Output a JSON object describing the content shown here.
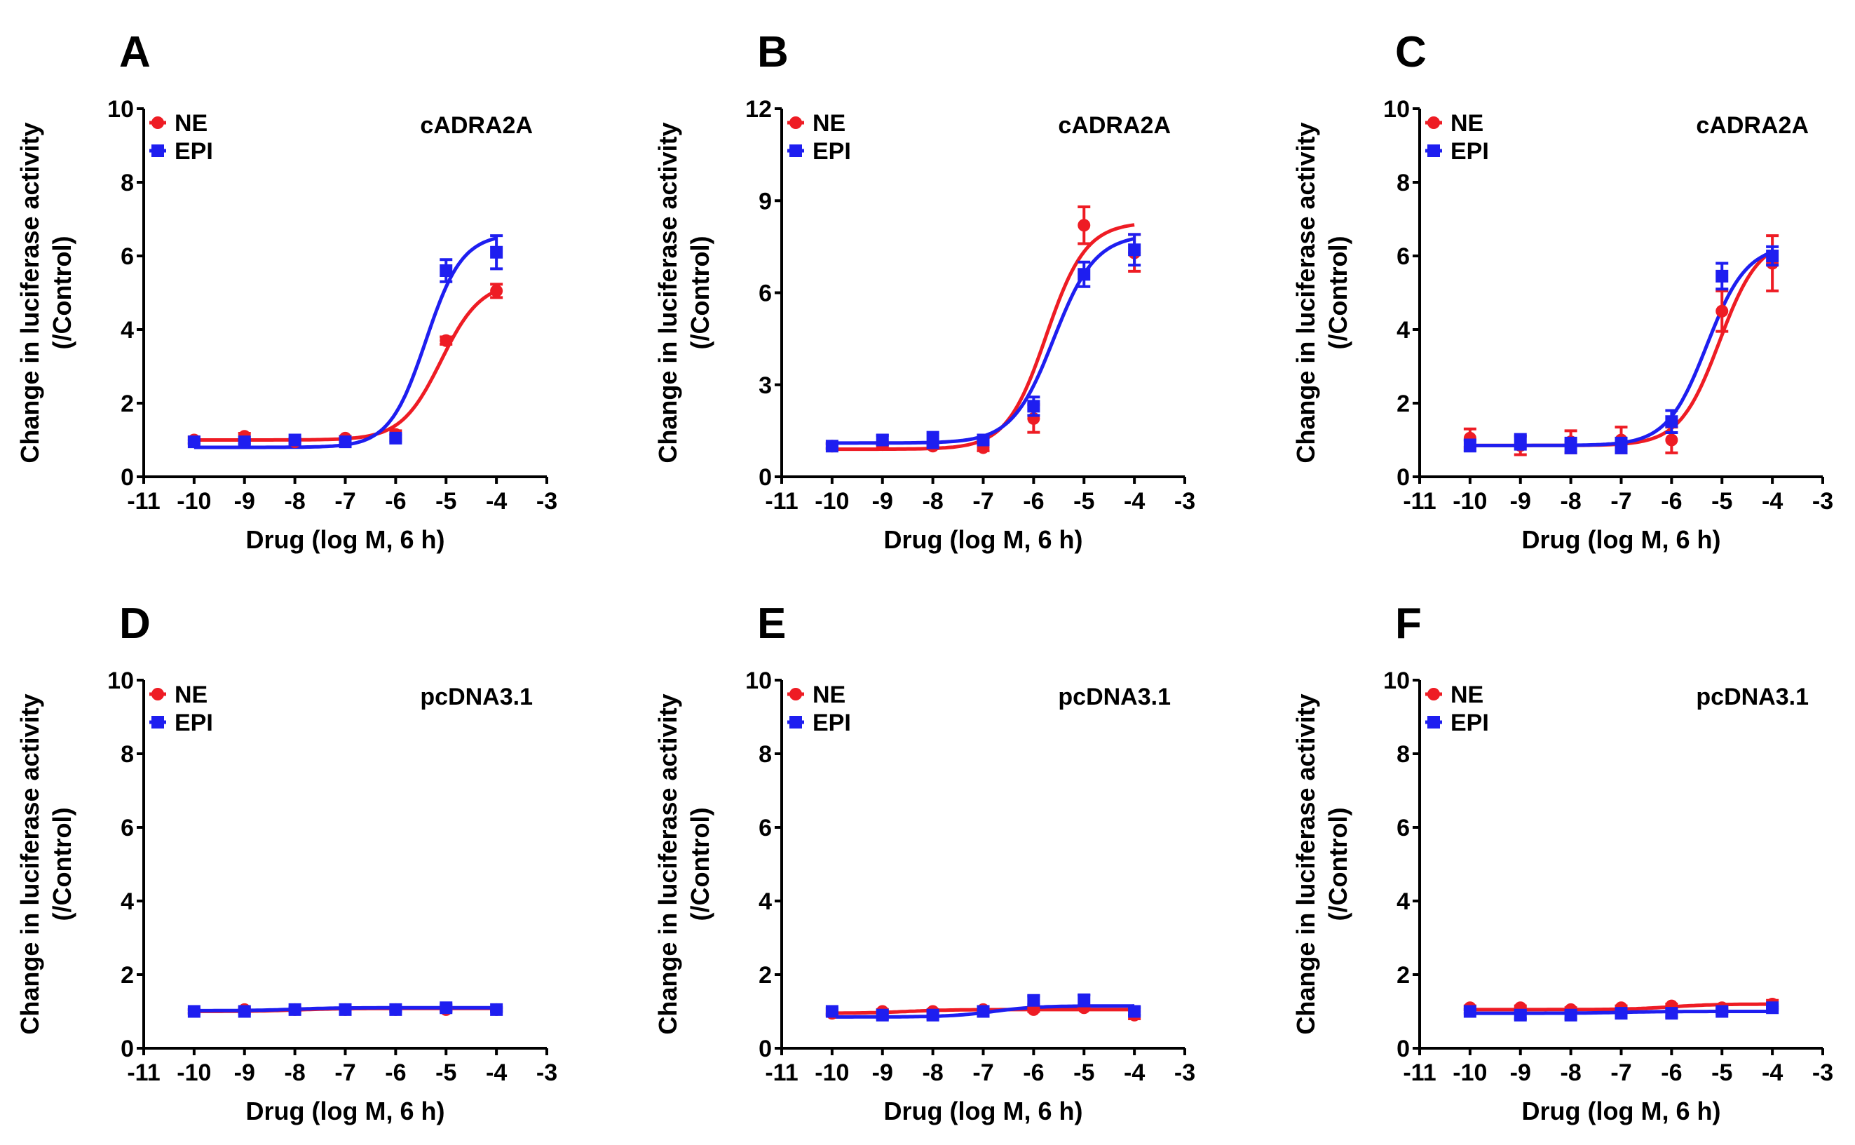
{
  "chart_data": [
    {
      "panel": "A",
      "type": "scatter",
      "construct": "cADRA2A",
      "xlabel": "Drug (log M, 6 h)",
      "ylabel": [
        "Change in luciferase activity",
        "(/Control)"
      ],
      "xlim": [
        -11,
        -3
      ],
      "ylim": [
        0,
        10
      ],
      "xticks": [
        -11,
        -10,
        -9,
        -8,
        -7,
        -6,
        -5,
        -4,
        -3
      ],
      "yticks": [
        0,
        2,
        4,
        6,
        8,
        10
      ],
      "x": [
        -10,
        -9,
        -8,
        -7,
        -6,
        -5,
        -4
      ],
      "series": [
        {
          "name": "NE",
          "color": "#ee1c24",
          "marker": "circle",
          "values": [
            1.0,
            1.1,
            0.95,
            1.05,
            1.15,
            3.7,
            5.05
          ],
          "errors": [
            0.08,
            0.08,
            0.05,
            0.05,
            0.1,
            0.1,
            0.18
          ],
          "fit": {
            "bottom": 1.0,
            "top": 5.3,
            "logEC50": -5.1,
            "hill": 1.1
          }
        },
        {
          "name": "EPI",
          "color": "#1e1ef0",
          "marker": "square",
          "values": [
            0.95,
            0.95,
            1.0,
            0.95,
            1.05,
            5.6,
            6.1
          ],
          "errors": [
            0.05,
            0.05,
            0.05,
            0.05,
            0.08,
            0.3,
            0.45
          ],
          "fit": {
            "bottom": 0.8,
            "top": 6.6,
            "logEC50": -5.4,
            "hill": 1.2
          }
        }
      ]
    },
    {
      "panel": "B",
      "type": "scatter",
      "construct": "cADRA2A",
      "xlabel": "Drug (log M, 6 h)",
      "ylabel": [
        "Change in luciferase activity",
        "(/Control)"
      ],
      "xlim": [
        -11,
        -3
      ],
      "ylim": [
        0,
        12
      ],
      "xticks": [
        -11,
        -10,
        -9,
        -8,
        -7,
        -6,
        -5,
        -4,
        -3
      ],
      "yticks": [
        0,
        3,
        6,
        9,
        12
      ],
      "x": [
        -10,
        -9,
        -8,
        -7,
        -6,
        -5,
        -4
      ],
      "series": [
        {
          "name": "NE",
          "color": "#ee1c24",
          "marker": "circle",
          "values": [
            1.0,
            1.05,
            1.0,
            0.95,
            1.9,
            8.2,
            7.3
          ],
          "errors": [
            0.08,
            0.08,
            0.08,
            0.1,
            0.45,
            0.6,
            0.6
          ],
          "fit": {
            "bottom": 0.9,
            "top": 8.3,
            "logEC50": -5.75,
            "hill": 1.1
          }
        },
        {
          "name": "EPI",
          "color": "#1e1ef0",
          "marker": "square",
          "values": [
            1.0,
            1.2,
            1.2,
            1.2,
            2.3,
            6.6,
            7.4
          ],
          "errors": [
            0.08,
            0.15,
            0.25,
            0.15,
            0.3,
            0.4,
            0.5
          ],
          "fit": {
            "bottom": 1.1,
            "top": 7.9,
            "logEC50": -5.6,
            "hill": 1.05
          }
        }
      ]
    },
    {
      "panel": "C",
      "type": "scatter",
      "construct": "cADRA2A",
      "xlabel": "Drug (log M, 6 h)",
      "ylabel": [
        "Change in luciferase activity",
        "(/Control)"
      ],
      "xlim": [
        -11,
        -3
      ],
      "ylim": [
        0,
        10
      ],
      "xticks": [
        -11,
        -10,
        -9,
        -8,
        -7,
        -6,
        -5,
        -4,
        -3
      ],
      "yticks": [
        0,
        2,
        4,
        6,
        8,
        10
      ],
      "x": [
        -10,
        -9,
        -8,
        -7,
        -6,
        -5,
        -4
      ],
      "series": [
        {
          "name": "NE",
          "color": "#ee1c24",
          "marker": "circle",
          "values": [
            1.05,
            0.85,
            0.95,
            1.0,
            1.0,
            4.5,
            5.8
          ],
          "errors": [
            0.25,
            0.25,
            0.3,
            0.35,
            0.35,
            0.55,
            0.75
          ],
          "fit": {
            "bottom": 0.85,
            "top": 6.5,
            "logEC50": -5.05,
            "hill": 1.1
          }
        },
        {
          "name": "EPI",
          "color": "#1e1ef0",
          "marker": "square",
          "values": [
            0.85,
            0.95,
            0.85,
            0.85,
            1.5,
            5.45,
            6.0
          ],
          "errors": [
            0.15,
            0.2,
            0.2,
            0.2,
            0.3,
            0.35,
            0.25
          ],
          "fit": {
            "bottom": 0.85,
            "top": 6.3,
            "logEC50": -5.3,
            "hill": 1.1
          }
        }
      ]
    },
    {
      "panel": "D",
      "type": "scatter",
      "construct": "pcDNA3.1",
      "xlabel": "Drug (log M, 6 h)",
      "ylabel": [
        "Change in luciferase activity",
        "(/Control)"
      ],
      "xlim": [
        -11,
        -3
      ],
      "ylim": [
        0,
        10
      ],
      "xticks": [
        -11,
        -10,
        -9,
        -8,
        -7,
        -6,
        -5,
        -4,
        -3
      ],
      "yticks": [
        0,
        2,
        4,
        6,
        8,
        10
      ],
      "x": [
        -10,
        -9,
        -8,
        -7,
        -6,
        -5,
        -4
      ],
      "series": [
        {
          "name": "NE",
          "color": "#ee1c24",
          "marker": "circle",
          "values": [
            1.0,
            1.05,
            1.05,
            1.05,
            1.05,
            1.05,
            1.05
          ],
          "errors": [
            0.05,
            0.05,
            0.05,
            0.05,
            0.05,
            0.05,
            0.05
          ],
          "fit": {
            "bottom": 1.0,
            "top": 1.08,
            "logEC50": -8.0,
            "hill": 1.0
          }
        },
        {
          "name": "EPI",
          "color": "#1e1ef0",
          "marker": "square",
          "values": [
            1.0,
            1.0,
            1.05,
            1.05,
            1.05,
            1.1,
            1.05
          ],
          "errors": [
            0.05,
            0.05,
            0.05,
            0.05,
            0.05,
            0.08,
            0.05
          ],
          "fit": {
            "bottom": 1.02,
            "top": 1.1,
            "logEC50": -8.0,
            "hill": 1.0
          }
        }
      ]
    },
    {
      "panel": "E",
      "type": "scatter",
      "construct": "pcDNA3.1",
      "xlabel": "Drug (log M, 6 h)",
      "ylabel": [
        "Change in luciferase activity",
        "(/Control)"
      ],
      "xlim": [
        -11,
        -3
      ],
      "ylim": [
        0,
        10
      ],
      "xticks": [
        -11,
        -10,
        -9,
        -8,
        -7,
        -6,
        -5,
        -4,
        -3
      ],
      "yticks": [
        0,
        2,
        4,
        6,
        8,
        10
      ],
      "x": [
        -10,
        -9,
        -8,
        -7,
        -6,
        -5,
        -4
      ],
      "series": [
        {
          "name": "NE",
          "color": "#ee1c24",
          "marker": "circle",
          "values": [
            0.95,
            1.0,
            1.0,
            1.05,
            1.05,
            1.1,
            0.9
          ],
          "errors": [
            0.05,
            0.05,
            0.05,
            0.08,
            0.05,
            0.05,
            0.1
          ],
          "fit": {
            "bottom": 0.95,
            "top": 1.05,
            "logEC50": -8.5,
            "hill": 1.0
          }
        },
        {
          "name": "EPI",
          "color": "#1e1ef0",
          "marker": "square",
          "values": [
            1.0,
            0.9,
            0.9,
            1.0,
            1.3,
            1.3,
            1.0
          ],
          "errors": [
            0.08,
            0.1,
            0.1,
            0.1,
            0.12,
            0.15,
            0.1
          ],
          "fit": {
            "bottom": 0.85,
            "top": 1.15,
            "logEC50": -6.8,
            "hill": 1.0
          }
        }
      ]
    },
    {
      "panel": "F",
      "type": "scatter",
      "construct": "pcDNA3.1",
      "xlabel": "Drug (log M, 6 h)",
      "ylabel": [
        "Change in luciferase activity",
        "(/Control)"
      ],
      "xlim": [
        -11,
        -3
      ],
      "ylim": [
        0,
        10
      ],
      "xticks": [
        -11,
        -10,
        -9,
        -8,
        -7,
        -6,
        -5,
        -4,
        -3
      ],
      "yticks": [
        0,
        2,
        4,
        6,
        8,
        10
      ],
      "x": [
        -10,
        -9,
        -8,
        -7,
        -6,
        -5,
        -4
      ],
      "series": [
        {
          "name": "NE",
          "color": "#ee1c24",
          "marker": "circle",
          "values": [
            1.1,
            1.1,
            1.05,
            1.1,
            1.15,
            1.1,
            1.2
          ],
          "errors": [
            0.05,
            0.05,
            0.05,
            0.05,
            0.05,
            0.05,
            0.1
          ],
          "fit": {
            "bottom": 1.05,
            "top": 1.2,
            "logEC50": -6.0,
            "hill": 1.0
          }
        },
        {
          "name": "EPI",
          "color": "#1e1ef0",
          "marker": "square",
          "values": [
            1.0,
            0.9,
            0.9,
            0.95,
            0.95,
            1.0,
            1.1
          ],
          "errors": [
            0.05,
            0.1,
            0.1,
            0.1,
            0.1,
            0.05,
            0.05
          ],
          "fit": {
            "bottom": 0.95,
            "top": 1.0,
            "logEC50": -7.0,
            "hill": 1.0
          }
        }
      ]
    }
  ]
}
